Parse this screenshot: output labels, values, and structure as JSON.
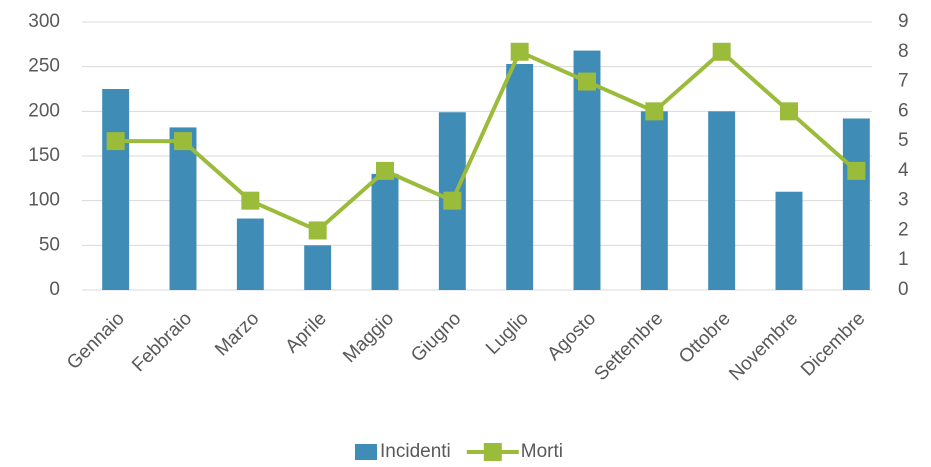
{
  "chart_data": {
    "type": "bar",
    "categories": [
      "Gennaio",
      "Febbraio",
      "Marzo",
      "Aprile",
      "Maggio",
      "Giugno",
      "Luglio",
      "Agosto",
      "Settembre",
      "Ottobre",
      "Novembre",
      "Dicembre"
    ],
    "series": [
      {
        "name": "Incidenti",
        "type": "bar",
        "color": "#3f8cb6",
        "values": [
          225,
          182,
          80,
          50,
          130,
          199,
          253,
          268,
          200,
          200,
          110,
          192
        ]
      },
      {
        "name": "Morti",
        "type": "line",
        "axis": "y2",
        "color": "#9bbb3b",
        "values": [
          5,
          5,
          3,
          2,
          4,
          3,
          8,
          7,
          6,
          8,
          6,
          4
        ]
      }
    ],
    "ylim": [
      0,
      300
    ],
    "yticks": [
      0,
      50,
      100,
      150,
      200,
      250,
      300
    ],
    "y2lim": [
      0,
      9
    ],
    "y2ticks": [
      0,
      1,
      2,
      3,
      4,
      5,
      6,
      7,
      8,
      9
    ],
    "grid": true,
    "legend": "bottom"
  }
}
